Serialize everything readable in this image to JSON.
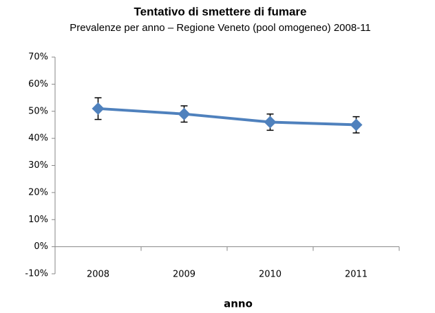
{
  "chart_data": {
    "type": "line",
    "title": "Tentativo di smettere di fumare",
    "subtitle": "Prevalenze per anno – Regione Veneto (pool omogeneo) 2008-11",
    "x_label": "anno",
    "categories": [
      "2008",
      "2009",
      "2010",
      "2011"
    ],
    "series": [
      {
        "color": "#4f81bd",
        "values": [
          51,
          49,
          46,
          45
        ],
        "errors": [
          4,
          3,
          3,
          3
        ]
      }
    ],
    "ylim": [
      -10,
      70
    ],
    "yticks": [
      {
        "value": -10,
        "label": "-10%"
      },
      {
        "value": 0,
        "label": "0%"
      },
      {
        "value": 10,
        "label": "10%"
      },
      {
        "value": 20,
        "label": "20%"
      },
      {
        "value": 30,
        "label": "30%"
      },
      {
        "value": 40,
        "label": "40%"
      },
      {
        "value": 50,
        "label": "50%"
      },
      {
        "value": 60,
        "label": "60%"
      },
      {
        "value": 70,
        "label": "70%"
      }
    ],
    "grid": false
  }
}
